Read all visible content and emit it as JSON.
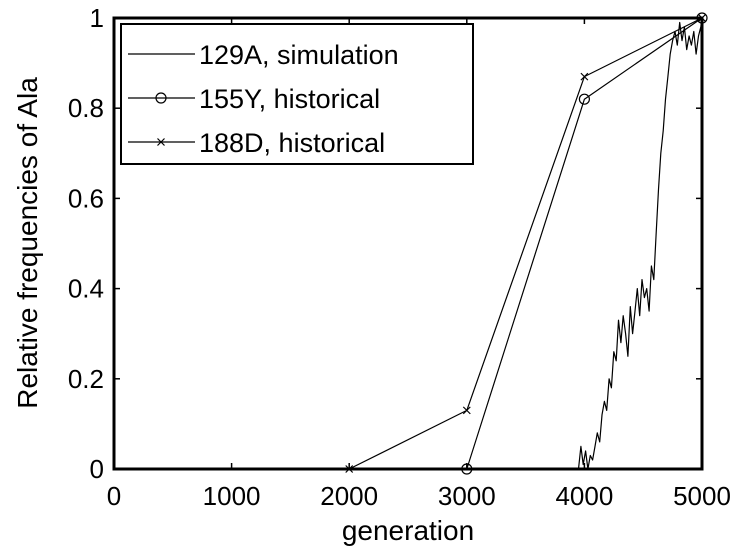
{
  "chart_data": {
    "type": "line",
    "xlabel": "generation",
    "ylabel": "Relative frequencies of Ala",
    "xlim": [
      0,
      5000
    ],
    "ylim": [
      0,
      1
    ],
    "xticks": [
      0,
      1000,
      2000,
      3000,
      4000,
      5000
    ],
    "yticks": [
      0,
      0.2,
      0.4,
      0.6,
      0.8,
      1
    ],
    "ytick_labels": [
      "0",
      "0.2",
      "0.4",
      "0.6",
      "0.8",
      "1"
    ],
    "legend_position": "top-left",
    "grid": false,
    "series": [
      {
        "name": "129A, simulation",
        "marker": "none",
        "color": "#000000",
        "x": [
          3950,
          3970,
          3990,
          4010,
          4030,
          4050,
          4070,
          4090,
          4110,
          4130,
          4150,
          4170,
          4190,
          4210,
          4230,
          4250,
          4270,
          4290,
          4310,
          4330,
          4350,
          4370,
          4390,
          4410,
          4430,
          4450,
          4470,
          4490,
          4510,
          4530,
          4550,
          4570,
          4590,
          4610,
          4630,
          4650,
          4670,
          4690,
          4710,
          4730,
          4750,
          4770,
          4790,
          4810,
          4830,
          4850,
          4870,
          4890,
          4910,
          4930,
          4950,
          4970,
          4990,
          5000
        ],
        "y": [
          0.0,
          0.05,
          0.01,
          0.04,
          0.0,
          0.03,
          0.02,
          0.05,
          0.08,
          0.06,
          0.12,
          0.15,
          0.13,
          0.2,
          0.18,
          0.26,
          0.24,
          0.33,
          0.28,
          0.34,
          0.3,
          0.25,
          0.36,
          0.3,
          0.35,
          0.4,
          0.34,
          0.42,
          0.38,
          0.4,
          0.35,
          0.45,
          0.42,
          0.52,
          0.62,
          0.7,
          0.75,
          0.82,
          0.87,
          0.92,
          0.95,
          0.97,
          0.94,
          0.99,
          0.95,
          0.98,
          0.93,
          0.96,
          0.94,
          0.97,
          0.92,
          0.96,
          0.98,
          1.0
        ]
      },
      {
        "name": "155Y, historical",
        "marker": "circle",
        "color": "#000000",
        "x": [
          3000,
          4000,
          5000
        ],
        "y": [
          0,
          0.82,
          1
        ]
      },
      {
        "name": "188D, historical",
        "marker": "x",
        "color": "#000000",
        "x": [
          2000,
          3000,
          4000,
          5000
        ],
        "y": [
          0,
          0.13,
          0.87,
          1
        ]
      }
    ]
  }
}
